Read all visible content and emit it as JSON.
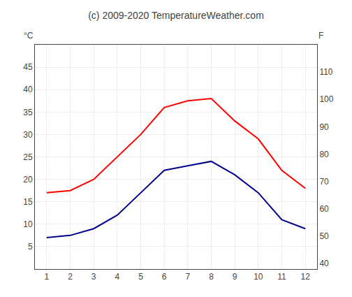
{
  "chart_data": {
    "type": "line",
    "title": "(c) 2009-2020 TemperatureWeather.com",
    "ylabel": "°C",
    "y2label": "F",
    "x": [
      1,
      2,
      3,
      4,
      5,
      6,
      7,
      8,
      9,
      10,
      11,
      12
    ],
    "series": [
      {
        "color": "#ff0000",
        "values": [
          17,
          17.5,
          20,
          25,
          30,
          36,
          37.5,
          38,
          33,
          29,
          22,
          18
        ]
      },
      {
        "color": "#00008b",
        "values": [
          7,
          7.5,
          9,
          12,
          17,
          22,
          23,
          24,
          21,
          17,
          11,
          9
        ]
      }
    ],
    "xlim": [
      0.5,
      12.5
    ],
    "xticks": [
      1,
      2,
      3,
      4,
      5,
      6,
      7,
      8,
      9,
      10,
      11,
      12
    ],
    "ylim": [
      0,
      50
    ],
    "yticks": [
      5,
      10,
      15,
      20,
      25,
      30,
      35,
      40,
      45
    ],
    "y2lim": [
      38,
      120
    ],
    "y2ticks": [
      40,
      50,
      60,
      70,
      80,
      90,
      100,
      110
    ],
    "grid": true
  }
}
